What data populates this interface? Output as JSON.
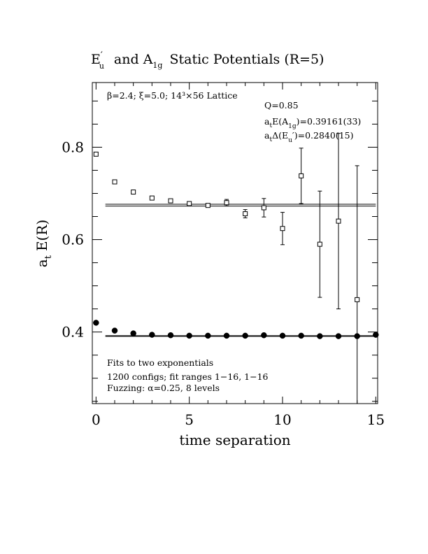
{
  "chart_data": {
    "type": "scatter",
    "title": {
      "main": "E",
      "main_sub": "u",
      "main_prime": "′",
      "join": "and A",
      "join_sub": "1g",
      "rest": "Static Potentials (R=5)"
    },
    "xlabel": "time separation",
    "ylabel": {
      "prefix": "a",
      "sub": "t",
      "rest": "E(R)"
    },
    "xlim": [
      -0.2,
      15.1
    ],
    "ylim": [
      0.245,
      0.94
    ],
    "x_ticks": [
      "0",
      "5",
      "10",
      "15"
    ],
    "y_ticks": [
      "0.4",
      "0.6",
      "0.8"
    ],
    "grid": false,
    "series": [
      {
        "marker": "open-square",
        "points": [
          {
            "x": 0,
            "y": 0.785,
            "err": 0
          },
          {
            "x": 1,
            "y": 0.725,
            "err": 0
          },
          {
            "x": 2,
            "y": 0.703,
            "err": 0
          },
          {
            "x": 3,
            "y": 0.69,
            "err": 0
          },
          {
            "x": 4,
            "y": 0.684,
            "err": 0
          },
          {
            "x": 5,
            "y": 0.678,
            "err": 0
          },
          {
            "x": 6,
            "y": 0.674,
            "err": 0
          },
          {
            "x": 7,
            "y": 0.68,
            "err": 0.007
          },
          {
            "x": 8,
            "y": 0.656,
            "err": 0.009
          },
          {
            "x": 9,
            "y": 0.669,
            "err": 0.02
          },
          {
            "x": 10,
            "y": 0.624,
            "err": 0.035
          },
          {
            "x": 11,
            "y": 0.738,
            "err": 0.06
          },
          {
            "x": 12,
            "y": 0.59,
            "err": 0.115
          },
          {
            "x": 13,
            "y": 0.64,
            "err": 0.19
          },
          {
            "x": 14,
            "y": 0.47,
            "err": 0.29
          }
        ]
      },
      {
        "marker": "filled-circle",
        "points": [
          {
            "x": 0,
            "y": 0.42,
            "err": 0
          },
          {
            "x": 1,
            "y": 0.403,
            "err": 0
          },
          {
            "x": 2,
            "y": 0.397,
            "err": 0
          },
          {
            "x": 3,
            "y": 0.394,
            "err": 0
          },
          {
            "x": 4,
            "y": 0.393,
            "err": 0
          },
          {
            "x": 5,
            "y": 0.392,
            "err": 0
          },
          {
            "x": 6,
            "y": 0.392,
            "err": 0
          },
          {
            "x": 7,
            "y": 0.392,
            "err": 0
          },
          {
            "x": 8,
            "y": 0.392,
            "err": 0
          },
          {
            "x": 9,
            "y": 0.393,
            "err": 0
          },
          {
            "x": 10,
            "y": 0.392,
            "err": 0
          },
          {
            "x": 11,
            "y": 0.392,
            "err": 0
          },
          {
            "x": 12,
            "y": 0.391,
            "err": 0
          },
          {
            "x": 13,
            "y": 0.391,
            "err": 0
          },
          {
            "x": 14,
            "y": 0.391,
            "err": 0
          },
          {
            "x": 15,
            "y": 0.394,
            "err": 0
          }
        ]
      }
    ],
    "fit_lines": [
      {
        "x": [
          0.5,
          15
        ],
        "y": 0.6765
      },
      {
        "x": [
          0.5,
          15
        ],
        "y": 0.6725
      },
      {
        "x": [
          0.5,
          15
        ],
        "y": 0.392
      },
      {
        "x": [
          0.5,
          15
        ],
        "y": 0.3905
      }
    ],
    "annotations": {
      "lattice": "β=2.4; ξ=5.0; 14³×56 Lattice",
      "q": "Q=0.85",
      "ae_prefix": "a",
      "ae_sub": "t",
      "ae_mid": "E(A",
      "ae_sub2": "1g",
      "ae_val": ")=0.39161(33)",
      "ad_prefix": "a",
      "ad_sub": "t",
      "ad_mid": "Δ(E",
      "ad_sub2": "u",
      "ad_val": "′)=0.2840(15)",
      "fits1": "Fits to two exponentials",
      "fits2": "1200 configs; fit ranges 1−16, 1−16",
      "fits3": "Fuzzing: α=0.25, 8 levels"
    }
  }
}
